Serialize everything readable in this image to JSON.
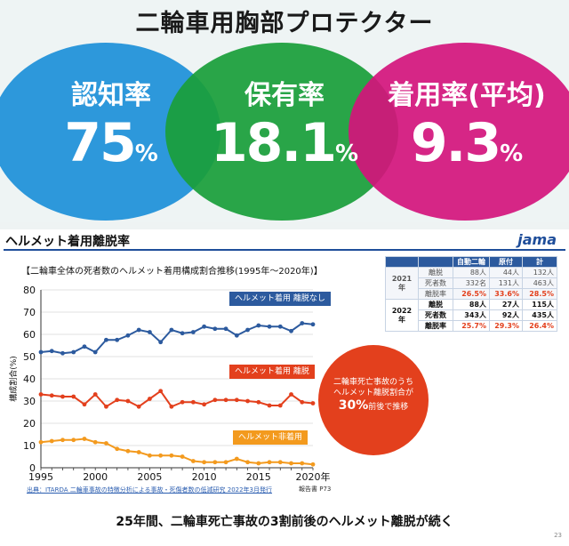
{
  "top": {
    "title": "二輪車用胸部プロテクター",
    "circles": [
      {
        "label": "認知率",
        "value": "75",
        "unit": "%",
        "color": "#1e90d8"
      },
      {
        "label": "保有率",
        "value": "18.1",
        "unit": "%",
        "color": "#1a9e3a"
      },
      {
        "label": "着用率(平均)",
        "value": "9.3",
        "unit": "%",
        "color": "#d4147c"
      }
    ]
  },
  "panel": {
    "title": "ヘルメット着用離脱率",
    "logo": "jama",
    "source": "出典：ITARDA 二輪車事故の特徴分析による事故・死傷者数の低減研究 2022年3月発行",
    "report_ref": "報告書 P73",
    "conclusion": "25年間、二輪車死亡事故の3割前後のヘルメット離脱が続く",
    "page_number": "23",
    "bubble": {
      "line1": "二輪車死亡事故のうち",
      "line2": "ヘルメット離脱割合が",
      "emph": "30%",
      "line3": "前後で推移"
    }
  },
  "table": {
    "headers": [
      "",
      "",
      "自動二輪",
      "原付",
      "計"
    ],
    "rows_2021": [
      {
        "year": "2021年",
        "label": "離脱",
        "values": [
          "88人",
          "44人",
          "132人"
        ]
      },
      {
        "label": "死者数",
        "values": [
          "332名",
          "131人",
          "463人"
        ]
      },
      {
        "label": "離脱率",
        "values": [
          "26.5%",
          "33.6%",
          "28.5%"
        ]
      }
    ],
    "rows_2022": [
      {
        "year": "2022年",
        "label": "離脱",
        "values": [
          "88人",
          "27人",
          "115人"
        ]
      },
      {
        "label": "死者数",
        "values": [
          "343人",
          "92人",
          "435人"
        ]
      },
      {
        "label": "離脱率",
        "values": [
          "25.7%",
          "29.3%",
          "26.4%"
        ]
      }
    ]
  },
  "chart_data": {
    "type": "line",
    "title": "【二輪車全体の死者数のヘルメット着用構成割合推移(1995年～2020年)】",
    "ylabel": "構成割合(%)",
    "xlabel": "",
    "ylim": [
      0,
      80
    ],
    "yticks": [
      0,
      10,
      20,
      30,
      40,
      50,
      60,
      70,
      80
    ],
    "xticks": [
      "1995",
      "2000",
      "2005",
      "2010",
      "2015",
      "2020年"
    ],
    "x": [
      1995,
      1996,
      1997,
      1998,
      1999,
      2000,
      2001,
      2002,
      2003,
      2004,
      2005,
      2006,
      2007,
      2008,
      2009,
      2010,
      2011,
      2012,
      2013,
      2014,
      2015,
      2016,
      2017,
      2018,
      2019,
      2020
    ],
    "series": [
      {
        "name": "ヘルメット着用 離脱なし",
        "color": "#2c5a9e",
        "values": [
          52,
          52.5,
          51.5,
          52,
          54.5,
          52,
          57.5,
          57.5,
          59.5,
          62,
          61,
          56.5,
          62,
          60.5,
          61,
          63.5,
          62.5,
          62.5,
          59.5,
          62,
          64,
          63.5,
          63.5,
          61.5,
          65,
          64.5
        ]
      },
      {
        "name": "ヘルメット着用 離脱",
        "color": "#e3401d",
        "values": [
          33,
          32.5,
          32,
          32,
          28.5,
          33,
          27.5,
          30.5,
          30,
          27.5,
          31,
          34.5,
          27.5,
          29.5,
          29.5,
          28.5,
          30.5,
          30.5,
          30.5,
          30,
          29.5,
          28,
          28,
          33,
          29.5,
          29
        ]
      },
      {
        "name": "ヘルメット非着用",
        "color": "#f39a1e",
        "values": [
          11.5,
          12,
          12.5,
          12.5,
          13,
          11.5,
          11,
          8.5,
          7.5,
          7,
          5.5,
          5.5,
          5.5,
          5,
          3,
          2.5,
          2.5,
          2.5,
          4,
          2.5,
          2,
          2.5,
          2.5,
          2,
          2,
          1.5
        ]
      }
    ]
  }
}
